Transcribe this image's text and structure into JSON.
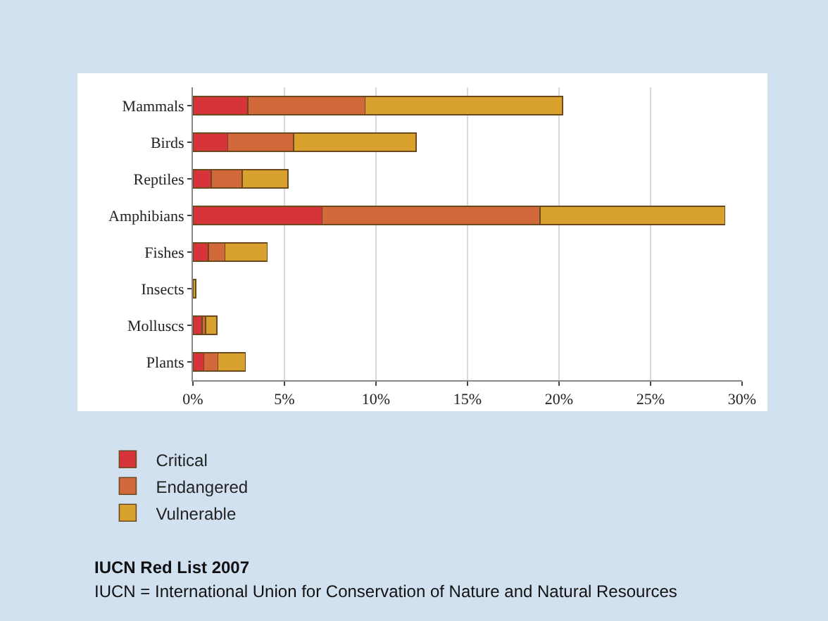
{
  "chart_data": {
    "type": "bar",
    "orientation": "horizontal",
    "stacked": true,
    "categories": [
      "Mammals",
      "Birds",
      "Reptiles",
      "Amphibians",
      "Fishes",
      "Insects",
      "Molluscs",
      "Plants"
    ],
    "series": [
      {
        "name": "Critical",
        "color": "#d6333a",
        "values": [
          3.0,
          1.9,
          1.0,
          7.05,
          0.85,
          null,
          0.5,
          0.6
        ]
      },
      {
        "name": "Endangered",
        "color": "#d2693a",
        "values": [
          6.4,
          3.6,
          1.7,
          11.9,
          0.9,
          null,
          0.2,
          0.76
        ]
      },
      {
        "name": "Vulnerable",
        "color": "#d9a12e",
        "values": [
          10.8,
          6.7,
          2.5,
          10.1,
          2.3,
          0.15,
          0.6,
          1.5
        ]
      }
    ],
    "xlim": [
      0,
      30
    ],
    "xticks": [
      {
        "value": 0,
        "label": "0%"
      },
      {
        "value": 5,
        "label": "5%"
      },
      {
        "value": 10,
        "label": "10%"
      },
      {
        "value": 15,
        "label": "15%"
      },
      {
        "value": 20,
        "label": "20%"
      },
      {
        "value": 25,
        "label": "25%"
      },
      {
        "value": 30,
        "label": "30%"
      }
    ],
    "grid": "x",
    "legend": "bottom left",
    "annotations": [
      "IUCN Red List 2007",
      "IUCN = International Union for Conservation of Nature and Natural Resources"
    ]
  }
}
